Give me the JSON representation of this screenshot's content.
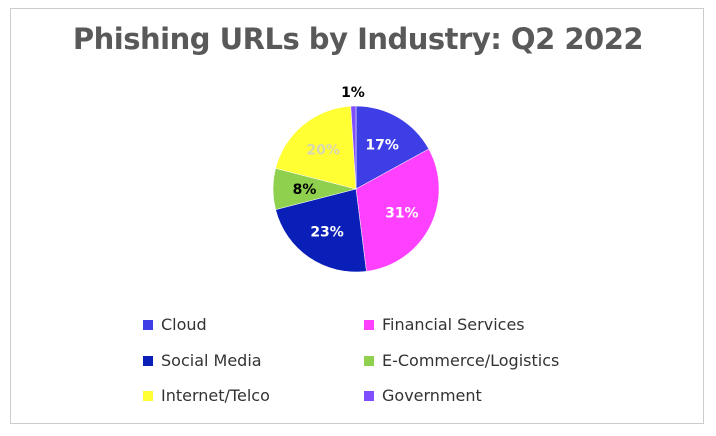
{
  "chart_data": {
    "type": "pie",
    "title": "Phishing URLs by Industry: Q2 2022",
    "slices": [
      {
        "label": "Cloud",
        "value": 17,
        "display": "17%",
        "color": "#3e3ee6"
      },
      {
        "label": "Financial Services",
        "value": 31,
        "display": "31%",
        "color": "#ff40ff"
      },
      {
        "label": "Social Media",
        "value": 23,
        "display": "23%",
        "color": "#0a1fb8"
      },
      {
        "label": "E-Commerce/Logistics",
        "value": 8,
        "display": "8%",
        "color": "#8fd14f"
      },
      {
        "label": "Internet/Telco",
        "value": 20,
        "display": "20%",
        "color": "#ffff33"
      },
      {
        "label": "Government",
        "value": 1,
        "display": "1%",
        "color": "#7f4fff"
      }
    ],
    "legend_position": "bottom"
  }
}
